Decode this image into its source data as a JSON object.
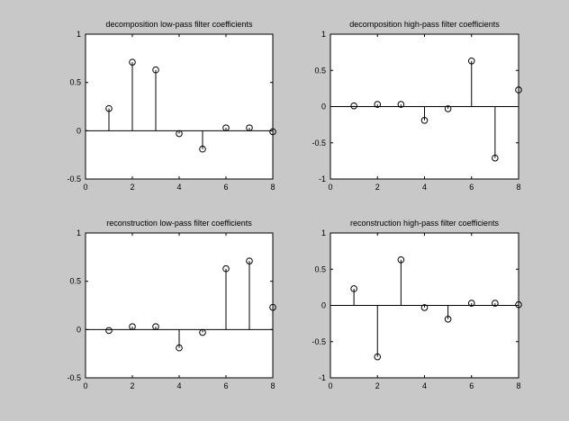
{
  "figure": {
    "background": "#c8c8c8",
    "axes_background": "#ffffff",
    "line_color": "#000000"
  },
  "chart_data": [
    {
      "type": "stem",
      "title": "decomposition low-pass filter coefficients",
      "xlabel": "",
      "ylabel": "",
      "xlim": [
        0,
        8
      ],
      "ylim": [
        -0.5,
        1
      ],
      "xticks": [
        0,
        2,
        4,
        6,
        8
      ],
      "yticks": [
        -0.5,
        0,
        0.5,
        1
      ],
      "ytick_labels": [
        "-0.5",
        "0",
        "0.5",
        "1"
      ],
      "x": [
        1,
        2,
        3,
        4,
        5,
        6,
        7,
        8
      ],
      "y": [
        0.23,
        0.71,
        0.63,
        -0.03,
        -0.19,
        0.03,
        0.03,
        -0.01
      ],
      "marker": "circle",
      "grid": false
    },
    {
      "type": "stem",
      "title": "decomposition high-pass filter coefficients",
      "xlabel": "",
      "ylabel": "",
      "xlim": [
        0,
        8
      ],
      "ylim": [
        -1,
        1
      ],
      "xticks": [
        0,
        2,
        4,
        6,
        8
      ],
      "yticks": [
        -1,
        -0.5,
        0,
        0.5,
        1
      ],
      "ytick_labels": [
        "-1",
        "-0.5",
        "0",
        "0.5",
        "1"
      ],
      "x": [
        1,
        2,
        3,
        4,
        5,
        6,
        7,
        8
      ],
      "y": [
        0.01,
        0.03,
        0.03,
        -0.19,
        -0.03,
        0.63,
        -0.71,
        0.23
      ],
      "marker": "circle",
      "grid": false
    },
    {
      "type": "stem",
      "title": "reconstruction low-pass filter coefficients",
      "xlabel": "",
      "ylabel": "",
      "xlim": [
        0,
        8
      ],
      "ylim": [
        -0.5,
        1
      ],
      "xticks": [
        0,
        2,
        4,
        6,
        8
      ],
      "yticks": [
        -0.5,
        0,
        0.5,
        1
      ],
      "ytick_labels": [
        "-0.5",
        "0",
        "0.5",
        "1"
      ],
      "x": [
        1,
        2,
        3,
        4,
        5,
        6,
        7,
        8
      ],
      "y": [
        -0.01,
        0.03,
        0.03,
        -0.19,
        -0.03,
        0.63,
        0.71,
        0.23
      ],
      "marker": "circle",
      "grid": false
    },
    {
      "type": "stem",
      "title": "reconstruction high-pass filter coefficients",
      "xlabel": "",
      "ylabel": "",
      "xlim": [
        0,
        8
      ],
      "ylim": [
        -1,
        1
      ],
      "xticks": [
        0,
        2,
        4,
        6,
        8
      ],
      "yticks": [
        -1,
        -0.5,
        0,
        0.5,
        1
      ],
      "ytick_labels": [
        "-1",
        "-0.5",
        "0",
        "0.5",
        "1"
      ],
      "x": [
        1,
        2,
        3,
        4,
        5,
        6,
        7,
        8
      ],
      "y": [
        0.23,
        -0.71,
        0.63,
        -0.03,
        -0.19,
        0.03,
        0.03,
        0.01
      ],
      "marker": "circle",
      "grid": false
    }
  ]
}
